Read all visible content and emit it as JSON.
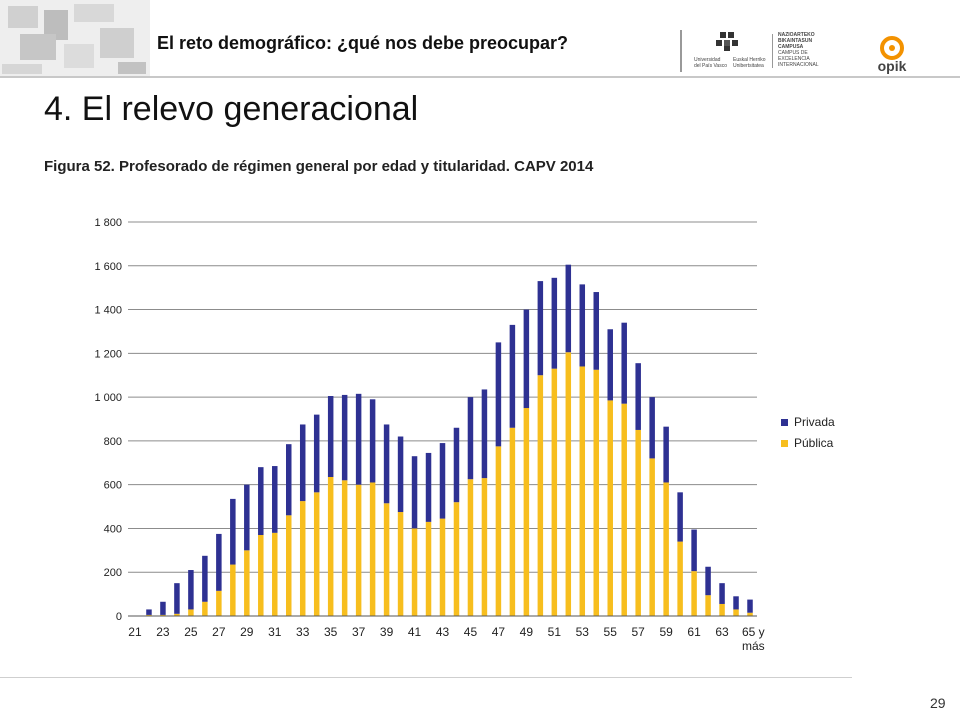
{
  "header": {
    "title": "El reto demográfico: ¿qué nos debe preocupar?",
    "logo_upv_line1": "Universidad",
    "logo_upv_line2": "del País Vasco",
    "logo_ehu_line1": "Euskal Herriko",
    "logo_ehu_line2": "Unibertsitatea",
    "campus_lines": [
      "NAZIOARTEKO",
      "BIKAINTASUN",
      "CAMPUSA",
      "CAMPUS DE",
      "EXCELENCIA",
      "INTERNACIONAL"
    ],
    "opik_label": "opik"
  },
  "slide_title": "4. El relevo generacional",
  "figure_caption": "Figura 52. Profesorado de régimen general por edad y titularidad.  CAPV 2014",
  "page_number": "29",
  "colors": {
    "publica": "#F7BE1E",
    "privada": "#2E3192",
    "grid": "#8C8C8C"
  },
  "chart_data": {
    "type": "bar",
    "stacked": true,
    "categories": [
      "21",
      "22",
      "23",
      "24",
      "25",
      "26",
      "27",
      "28",
      "29",
      "30",
      "31",
      "32",
      "33",
      "34",
      "35",
      "36",
      "37",
      "38",
      "39",
      "40",
      "41",
      "42",
      "43",
      "44",
      "45",
      "46",
      "47",
      "48",
      "49",
      "50",
      "51",
      "52",
      "53",
      "54",
      "55",
      "56",
      "57",
      "58",
      "59",
      "60",
      "61",
      "62",
      "63",
      "64",
      "65 y más"
    ],
    "x_tick_labels": [
      "21",
      "23",
      "25",
      "27",
      "29",
      "31",
      "33",
      "35",
      "37",
      "39",
      "41",
      "43",
      "45",
      "47",
      "49",
      "51",
      "53",
      "55",
      "57",
      "59",
      "61",
      "63",
      "65 y más"
    ],
    "series": [
      {
        "name": "Pública",
        "values": [
          0,
          5,
          5,
          10,
          30,
          65,
          115,
          235,
          300,
          370,
          380,
          460,
          525,
          565,
          635,
          620,
          600,
          610,
          515,
          475,
          400,
          430,
          445,
          520,
          625,
          630,
          775,
          860,
          950,
          1100,
          1130,
          1205,
          1140,
          1125,
          985,
          970,
          850,
          720,
          610,
          340,
          205,
          95,
          55,
          30,
          15
        ]
      },
      {
        "name": "Privada",
        "values": [
          0,
          25,
          60,
          140,
          180,
          210,
          260,
          300,
          300,
          310,
          305,
          325,
          350,
          355,
          370,
          390,
          415,
          380,
          360,
          345,
          330,
          315,
          345,
          340,
          375,
          405,
          475,
          470,
          450,
          430,
          415,
          400,
          375,
          355,
          325,
          370,
          305,
          280,
          255,
          225,
          190,
          130,
          95,
          60,
          60
        ]
      }
    ],
    "y_tick_labels": [
      "0",
      "200",
      "400",
      "600",
      "800",
      "1 000",
      "1 200",
      "1 400",
      "1 600",
      "1 800"
    ],
    "ylim": [
      0,
      1800
    ],
    "title": "",
    "xlabel": "",
    "ylabel": "",
    "legend": [
      "Privada",
      "Pública"
    ],
    "legend_position": "right",
    "grid": true
  }
}
